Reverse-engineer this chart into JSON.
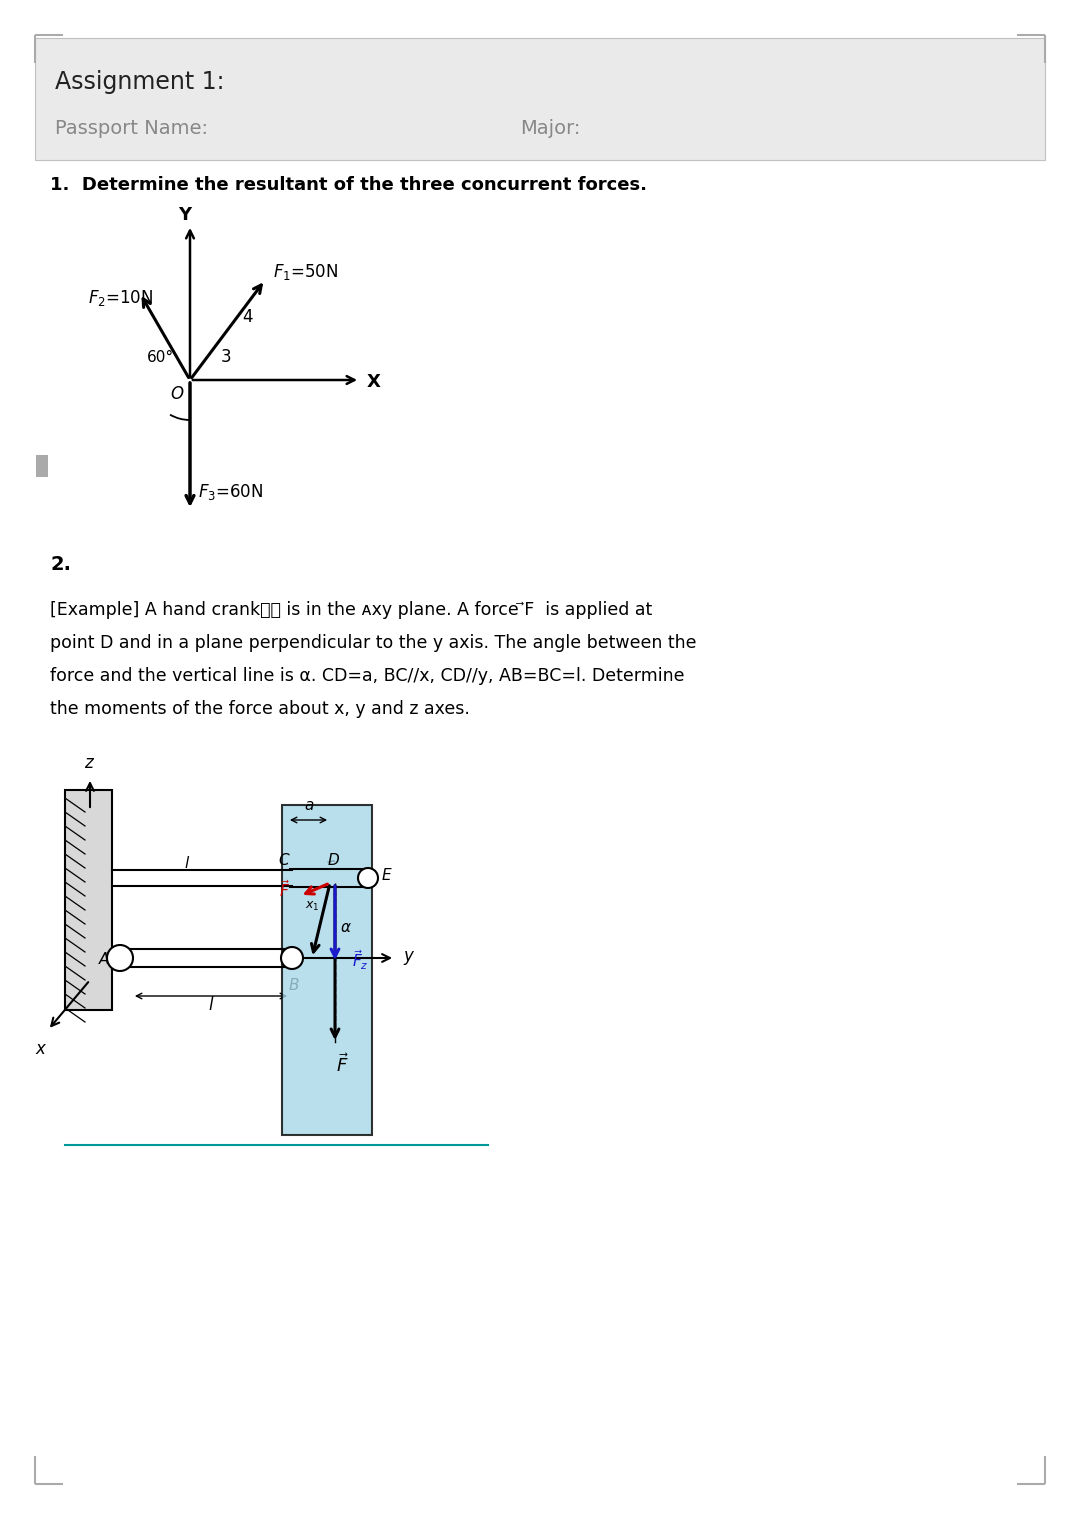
{
  "title": "Assignment 1:",
  "passport_label": "Passport Name:",
  "major_label": "Major:",
  "problem1_label": "1.  Determine the resultant of the three concurrent forces.",
  "problem2_label": "2.",
  "ex_line1": "[Example] A hand crank手柄 is in the ᴀxy plane. A force ⃗F  is applied at",
  "ex_line2": "point D and in a plane perpendicular to the y axis. The angle between the",
  "ex_line3": "force and the vertical line is α. CD=a, BC//x, CD//y, AB=BC=l. Determine",
  "ex_line4": "the moments of the force about x, y and z axes.",
  "bg_header_color": "#eaeaea",
  "bg_page_color": "#ffffff",
  "cyan_fill": "#a8d8e8",
  "red_color": "#cc0000",
  "blue_color": "#1a1acc",
  "black_color": "#000000",
  "gray_text_color": "#888888",
  "corner_color": "#aaaaaa",
  "header_border_color": "#c0c0c0"
}
